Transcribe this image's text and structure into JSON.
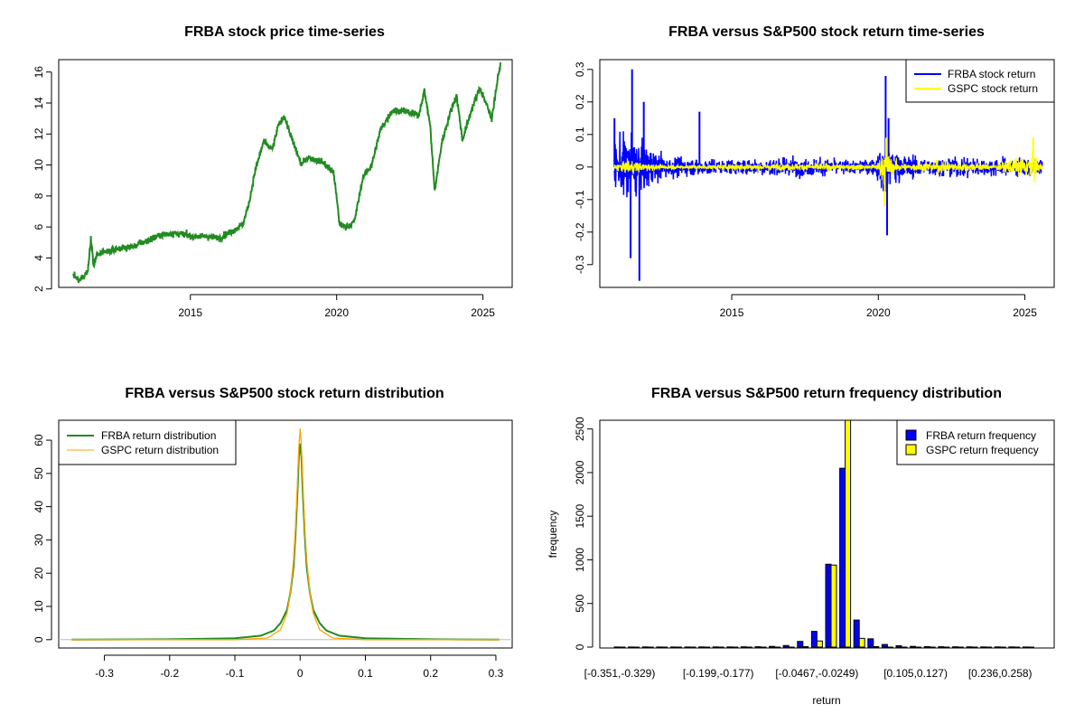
{
  "colors": {
    "frba_price": "#228b22",
    "frba_return": "#0000ff",
    "gspc_return": "#ffff00",
    "frba_density": "#228b22",
    "gspc_density": "#ffa500",
    "frba_hist": "#0000ff",
    "gspc_hist": "#ffff00"
  },
  "chart_data": [
    {
      "type": "line",
      "title": "FRBA stock price time-series",
      "xlabel": "",
      "ylabel": "",
      "xlim": [
        2010.5,
        2026.0
      ],
      "ylim": [
        2.1,
        16.8
      ],
      "xticks": [
        2015,
        2020,
        2025
      ],
      "yticks": [
        2,
        4,
        6,
        8,
        10,
        12,
        14,
        16
      ],
      "series": [
        {
          "name": "FRBA",
          "x": [
            2011.0,
            2011.2,
            2011.5,
            2011.6,
            2011.7,
            2011.8,
            2012.0,
            2012.5,
            2013.0,
            2013.5,
            2014.0,
            2014.5,
            2015.0,
            2015.5,
            2016.0,
            2016.5,
            2016.8,
            2017.0,
            2017.2,
            2017.5,
            2017.8,
            2018.0,
            2018.2,
            2018.5,
            2018.8,
            2019.0,
            2019.5,
            2019.9,
            2020.1,
            2020.3,
            2020.6,
            2020.9,
            2021.2,
            2021.5,
            2021.9,
            2022.3,
            2022.8,
            2023.0,
            2023.2,
            2023.35,
            2023.6,
            2023.9,
            2024.1,
            2024.3,
            2024.6,
            2024.9,
            2025.1,
            2025.3,
            2025.5,
            2025.6
          ],
          "values": [
            2.9,
            2.5,
            3.2,
            5.3,
            3.5,
            4.2,
            4.3,
            4.6,
            4.7,
            5.1,
            5.5,
            5.6,
            5.4,
            5.4,
            5.3,
            5.8,
            6.2,
            7.5,
            9.5,
            11.5,
            11.0,
            12.5,
            13.2,
            11.5,
            10.0,
            10.5,
            10.2,
            9.5,
            6.2,
            6.0,
            6.3,
            9.2,
            10.0,
            12.3,
            13.5,
            13.5,
            13.2,
            14.8,
            12.5,
            8.3,
            11.5,
            13.5,
            14.5,
            11.6,
            13.5,
            15.0,
            14.0,
            13.0,
            15.5,
            16.5
          ]
        }
      ]
    },
    {
      "type": "line",
      "title": "FRBA versus S&P500 stock return time-series",
      "xlabel": "",
      "ylabel": "",
      "xlim": [
        2010.5,
        2026.0
      ],
      "ylim": [
        -0.37,
        0.33
      ],
      "xticks": [
        2015,
        2020,
        2025
      ],
      "yticks": [
        -0.3,
        -0.2,
        -0.1,
        0.0,
        0.1,
        0.2,
        0.3
      ],
      "legend": [
        "FRBA stock return",
        "GSPC stock return"
      ],
      "legend_position": "top-right",
      "series": [
        {
          "name": "FRBA stock return",
          "amplitude_x": [
            2011.0,
            2011.5,
            2012.0,
            2012.5,
            2013.0,
            2014.0,
            2015.0,
            2016.0,
            2017.0,
            2018.0,
            2019.0,
            2019.9,
            2020.2,
            2020.5,
            2021.0,
            2022.0,
            2023.0,
            2024.0,
            2025.0,
            2025.6
          ],
          "amplitude": [
            0.1,
            0.14,
            0.09,
            0.06,
            0.04,
            0.035,
            0.03,
            0.035,
            0.04,
            0.035,
            0.03,
            0.03,
            0.12,
            0.07,
            0.045,
            0.035,
            0.04,
            0.035,
            0.035,
            0.035
          ],
          "spikes_x": [
            2011.0,
            2011.55,
            2011.6,
            2011.85,
            2012.0,
            2013.9,
            2020.25,
            2020.3,
            2020.35
          ],
          "spikes_value": [
            0.15,
            -0.28,
            0.3,
            -0.35,
            0.2,
            0.17,
            0.28,
            -0.21,
            0.15
          ]
        },
        {
          "name": "GSPC stock return",
          "amplitude_x": [
            2011.0,
            2011.5,
            2011.8,
            2012.5,
            2014.0,
            2015.5,
            2016.0,
            2018.0,
            2019.9,
            2020.2,
            2020.5,
            2021.0,
            2022.0,
            2022.8,
            2024.0,
            2025.3,
            2025.6
          ],
          "amplitude": [
            0.012,
            0.03,
            0.02,
            0.01,
            0.008,
            0.015,
            0.012,
            0.015,
            0.01,
            0.07,
            0.03,
            0.012,
            0.025,
            0.02,
            0.012,
            0.05,
            0.015
          ],
          "spikes_x": [
            2020.22,
            2020.27,
            2025.28
          ],
          "spikes_value": [
            -0.12,
            0.09,
            0.09
          ]
        }
      ]
    },
    {
      "type": "line",
      "title": "FRBA versus S&P500 stock return distribution",
      "xlabel": "",
      "ylabel": "",
      "xlim": [
        -0.37,
        0.325
      ],
      "ylim": [
        -2.5,
        66
      ],
      "xticks": [
        -0.3,
        -0.2,
        -0.1,
        0.0,
        0.1,
        0.2,
        0.3
      ],
      "yticks": [
        0,
        10,
        20,
        30,
        40,
        50,
        60
      ],
      "legend": [
        "FRBA return distribution",
        "GSPC return distribution"
      ],
      "legend_position": "top-left",
      "series": [
        {
          "name": "FRBA return distribution",
          "x": [
            -0.35,
            -0.2,
            -0.1,
            -0.06,
            -0.04,
            -0.03,
            -0.02,
            -0.015,
            -0.01,
            -0.007,
            -0.004,
            -0.002,
            0.0,
            0.002,
            0.004,
            0.007,
            0.01,
            0.015,
            0.02,
            0.03,
            0.04,
            0.06,
            0.1,
            0.2,
            0.305
          ],
          "values": [
            0.0,
            0.1,
            0.4,
            1.2,
            2.8,
            5.0,
            9.0,
            14.0,
            22.0,
            32.0,
            45.0,
            55.0,
            59.0,
            55.0,
            45.0,
            32.0,
            22.0,
            14.0,
            9.0,
            5.0,
            2.8,
            1.2,
            0.4,
            0.1,
            0.0
          ]
        },
        {
          "name": "GSPC return distribution",
          "x": [
            -0.35,
            -0.1,
            -0.05,
            -0.03,
            -0.02,
            -0.015,
            -0.01,
            -0.007,
            -0.004,
            -0.002,
            0.0,
            0.002,
            0.004,
            0.007,
            0.01,
            0.015,
            0.02,
            0.03,
            0.05,
            0.1,
            0.305
          ],
          "values": [
            0.0,
            0.0,
            0.5,
            3.0,
            8.0,
            14.0,
            24.0,
            34.0,
            48.0,
            58.0,
            63.5,
            58.0,
            48.0,
            34.0,
            24.0,
            14.0,
            8.0,
            3.0,
            0.5,
            0.0,
            0.0
          ]
        }
      ]
    },
    {
      "type": "bar",
      "title": "FRBA versus S&P500 return frequency distribution",
      "xlabel": "return",
      "ylabel": "frequency",
      "ylim": [
        0,
        2600
      ],
      "yticks": [
        0,
        500,
        1000,
        1500,
        2000,
        2500
      ],
      "tick_labels": [
        "[-0.351,-0.329)",
        "[-0.199,-0.177)",
        "[-0.0467,-0.0249)",
        "[0.105,0.127)",
        "[0.236,0.258)"
      ],
      "tick_bins": [
        0,
        7,
        14,
        21,
        27
      ],
      "legend": [
        "FRBA return frequency",
        "GSPC return frequency"
      ],
      "legend_position": "top-right",
      "bins": 30,
      "series": [
        {
          "name": "FRBA return frequency",
          "values": [
            1,
            1,
            2,
            1,
            1,
            1,
            2,
            2,
            2,
            3,
            4,
            8,
            18,
            65,
            180,
            950,
            2050,
            310,
            95,
            30,
            15,
            8,
            5,
            4,
            3,
            3,
            2,
            2,
            2,
            1
          ]
        },
        {
          "name": "GSPC return frequency",
          "values": [
            0,
            0,
            0,
            0,
            0,
            0,
            0,
            0,
            0,
            0,
            0,
            0,
            0,
            5,
            70,
            940,
            2600,
            100,
            5,
            0,
            0,
            0,
            0,
            0,
            0,
            0,
            0,
            0,
            0,
            0
          ]
        }
      ]
    }
  ]
}
